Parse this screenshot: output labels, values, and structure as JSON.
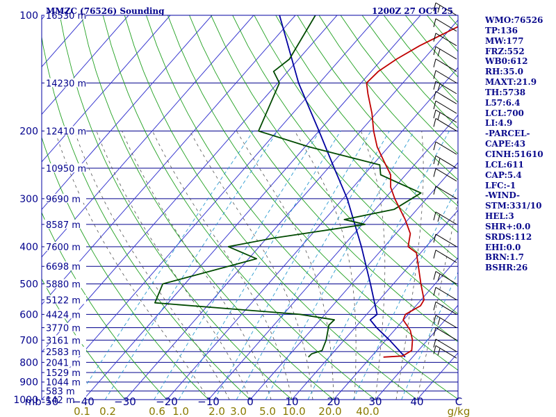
{
  "header": {
    "title": "MMZC (76526) Sounding",
    "time": "1200Z 27 OCT 25"
  },
  "indices": [
    "WMO:76526",
    "TP:136",
    "MW:177",
    "FRZ:552",
    "WB0:612",
    "RH:35.0",
    "MAXT:21.9",
    "TH:5738",
    "L57:6.4",
    "LCL:700",
    "LI:4.9",
    "-PARCEL-",
    "CAPE:43",
    "CINH:51610",
    "LCL:611",
    "CAP:5.4",
    "LFC:-1",
    "-WIND-",
    "STM:331/10",
    "HEL:3",
    "SHR+:0.0",
    "SRDS:112",
    "EHI:0.0",
    "BRN:1.7",
    "BSHR:26"
  ],
  "colors": {
    "frame": "#0000a0",
    "isobar": "#00008c",
    "isotherm": "#3a3ad0",
    "dry_adiabat": "#20a020",
    "moist_adiabat": "#505050",
    "mixing_ratio": "#2a9ad0",
    "temperature": "#c00000",
    "dewpoint": "#004a00",
    "parcel": "#0000a0",
    "label": "#00008c",
    "mixing_label": "#8a7a00",
    "wind_barb": "#000000"
  },
  "chart_data": {
    "type": "skew-t log-p",
    "pressure_unit": "mb",
    "temperature_unit": "C",
    "mixing_unit": "g/kg",
    "y_scale": "log",
    "pressure_range": [
      1000,
      100
    ],
    "temperature_range": [
      -50,
      50
    ],
    "pressure_ticks": [
      {
        "p": 100,
        "label": "100",
        "height": "16530 m"
      },
      {
        "p": 150,
        "label": "",
        "height": "14230 m"
      },
      {
        "p": 200,
        "label": "200",
        "height": "12410 m"
      },
      {
        "p": 250,
        "label": "",
        "height": "10950 m"
      },
      {
        "p": 300,
        "label": "300",
        "height": "9690 m"
      },
      {
        "p": 350,
        "label": "",
        "height": "8587 m"
      },
      {
        "p": 400,
        "label": "400",
        "height": "7600 m"
      },
      {
        "p": 450,
        "label": "",
        "height": "6698 m"
      },
      {
        "p": 500,
        "label": "500",
        "height": "5880 m"
      },
      {
        "p": 550,
        "label": "",
        "height": "5122 m"
      },
      {
        "p": 600,
        "label": "600",
        "height": "4424 m"
      },
      {
        "p": 650,
        "label": "",
        "height": "3770 m"
      },
      {
        "p": 700,
        "label": "700",
        "height": "3161 m"
      },
      {
        "p": 750,
        "label": "",
        "height": "2583 m"
      },
      {
        "p": 800,
        "label": "800",
        "height": "2041 m"
      },
      {
        "p": 850,
        "label": "",
        "height": "1529 m"
      },
      {
        "p": 900,
        "label": "900",
        "height": "1044 m"
      },
      {
        "p": 950,
        "label": "",
        "height": "583 m"
      },
      {
        "p": 1000,
        "label": "1000",
        "height": "142 m"
      }
    ],
    "temperature_ticks": [
      {
        "t": -50,
        "label": "mb-50"
      },
      {
        "t": -40,
        "label": "−40"
      },
      {
        "t": -30,
        "label": "−30"
      },
      {
        "t": -20,
        "label": "−20"
      },
      {
        "t": -10,
        "label": "−10"
      },
      {
        "t": 0,
        "label": "0"
      },
      {
        "t": 10,
        "label": "10"
      },
      {
        "t": 20,
        "label": "20"
      },
      {
        "t": 30,
        "label": "30"
      },
      {
        "t": 40,
        "label": "40"
      },
      {
        "t": 50,
        "label": "C"
      }
    ],
    "mixing_ratio_labels": [
      {
        "w": 0.1,
        "label": "0.1"
      },
      {
        "w": 0.2,
        "label": "0.2"
      },
      {
        "w": 0.6,
        "label": "0.6"
      },
      {
        "w": 1.0,
        "label": "1.0"
      },
      {
        "w": 2.0,
        "label": "2.0"
      },
      {
        "w": 3.0,
        "label": "3.0"
      },
      {
        "w": 5.0,
        "label": "5.0"
      },
      {
        "w": 10.0,
        "label": "10.0"
      },
      {
        "w": 20.0,
        "label": "20.0"
      },
      {
        "w": 40.0,
        "label": "40.0"
      },
      {
        "w": null,
        "label": "g/kg"
      }
    ],
    "mixing_ratio_lines": [
      0.1,
      0.2,
      0.6,
      1.0,
      2.0,
      3.0,
      5.0,
      10.0,
      20.0,
      40.0
    ],
    "temperature_profile": [
      {
        "p": 775,
        "t": 23.0
      },
      {
        "p": 770,
        "t": 27.4
      },
      {
        "p": 745,
        "t": 28.4
      },
      {
        "p": 700,
        "t": 26.4
      },
      {
        "p": 660,
        "t": 23.8
      },
      {
        "p": 620,
        "t": 19.9
      },
      {
        "p": 600,
        "t": 19.3
      },
      {
        "p": 570,
        "t": 21.1
      },
      {
        "p": 550,
        "t": 20.7
      },
      {
        "p": 500,
        "t": 16.6
      },
      {
        "p": 450,
        "t": 12.3
      },
      {
        "p": 415,
        "t": 9.0
      },
      {
        "p": 400,
        "t": 5.7
      },
      {
        "p": 370,
        "t": 3.5
      },
      {
        "p": 340,
        "t": -0.7
      },
      {
        "p": 300,
        "t": -7.6
      },
      {
        "p": 280,
        "t": -11.0
      },
      {
        "p": 260,
        "t": -13.6
      },
      {
        "p": 240,
        "t": -18.0
      },
      {
        "p": 220,
        "t": -22.7
      },
      {
        "p": 200,
        "t": -26.9
      },
      {
        "p": 180,
        "t": -31.0
      },
      {
        "p": 160,
        "t": -36.1
      },
      {
        "p": 150,
        "t": -38.7
      },
      {
        "p": 140,
        "t": -38.3
      },
      {
        "p": 130,
        "t": -36.5
      },
      {
        "p": 120,
        "t": -33.8
      },
      {
        "p": 100,
        "t": -25.5
      }
    ],
    "dewpoint_profile": [
      {
        "p": 775,
        "t": 5.0
      },
      {
        "p": 760,
        "t": 5.1
      },
      {
        "p": 745,
        "t": 6.9
      },
      {
        "p": 700,
        "t": 5.7
      },
      {
        "p": 640,
        "t": 3.2
      },
      {
        "p": 620,
        "t": 3.4
      },
      {
        "p": 600,
        "t": -6.0
      },
      {
        "p": 560,
        "t": -43.2
      },
      {
        "p": 500,
        "t": -45.3
      },
      {
        "p": 430,
        "t": -28.1
      },
      {
        "p": 400,
        "t": -37.4
      },
      {
        "p": 380,
        "t": -28.4
      },
      {
        "p": 350,
        "t": -9.3
      },
      {
        "p": 340,
        "t": -15.3
      },
      {
        "p": 320,
        "t": -5.5
      },
      {
        "p": 290,
        "t": -2.5
      },
      {
        "p": 270,
        "t": -11.4
      },
      {
        "p": 260,
        "t": -16.0
      },
      {
        "p": 245,
        "t": -18.3
      },
      {
        "p": 220,
        "t": -39.0
      },
      {
        "p": 200,
        "t": -54.5
      },
      {
        "p": 150,
        "t": -59.6
      },
      {
        "p": 140,
        "t": -63.4
      },
      {
        "p": 130,
        "t": -62.2
      },
      {
        "p": 100,
        "t": -65.2
      }
    ],
    "parcel_profile": [
      {
        "p": 775,
        "t": 28.2
      },
      {
        "p": 700,
        "t": 20.9
      },
      {
        "p": 650,
        "t": 15.2
      },
      {
        "p": 620,
        "t": 12.0
      },
      {
        "p": 600,
        "t": 12.5
      },
      {
        "p": 500,
        "t": 4.5
      },
      {
        "p": 400,
        "t": -5.5
      },
      {
        "p": 300,
        "t": -19.0
      },
      {
        "p": 250,
        "t": -28.5
      },
      {
        "p": 200,
        "t": -40.0
      },
      {
        "p": 150,
        "t": -55.0
      },
      {
        "p": 100,
        "t": -73.8
      }
    ],
    "wind_levels_mb": [
      100,
      110,
      120,
      130,
      140,
      150,
      160,
      170,
      180,
      190,
      200,
      230,
      250,
      270,
      300,
      350,
      400,
      440,
      500,
      550,
      600,
      650,
      700,
      750,
      780
    ],
    "grid": true,
    "legend": "none"
  }
}
